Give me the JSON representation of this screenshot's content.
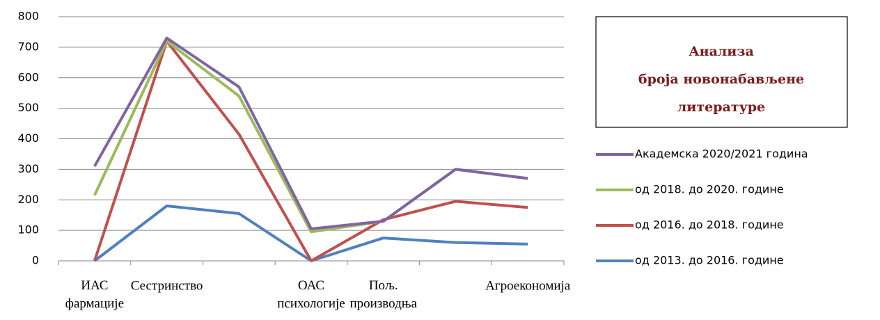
{
  "chart_data": {
    "type": "line",
    "title": [
      "Анализа",
      "броја новонабављене",
      "литературе"
    ],
    "categories": [
      "ИАС фармације",
      "Сестринство",
      null,
      "ОАС психологије",
      "Пољ. производња",
      null,
      "Агроекономија"
    ],
    "series": [
      {
        "name": "Академска 2020/2021 година",
        "color": "#8064a2",
        "values": [
          310,
          730,
          570,
          105,
          130,
          300,
          270
        ]
      },
      {
        "name": "од 2018. до 2020. године",
        "color": "#9bbb59",
        "values": [
          215,
          720,
          540,
          95,
          130,
          300,
          270
        ]
      },
      {
        "name": "од 2016. до 2018. године",
        "color": "#c0504d",
        "values": [
          0,
          720,
          415,
          0,
          135,
          195,
          175
        ]
      },
      {
        "name": "од 2013. до 2016. године",
        "color": "#4f81bd",
        "values": [
          0,
          180,
          155,
          0,
          75,
          60,
          55
        ]
      }
    ],
    "ylim": [
      0,
      800
    ],
    "yticks": [
      0,
      100,
      200,
      300,
      400,
      500,
      600,
      700,
      800
    ],
    "grid": true
  }
}
